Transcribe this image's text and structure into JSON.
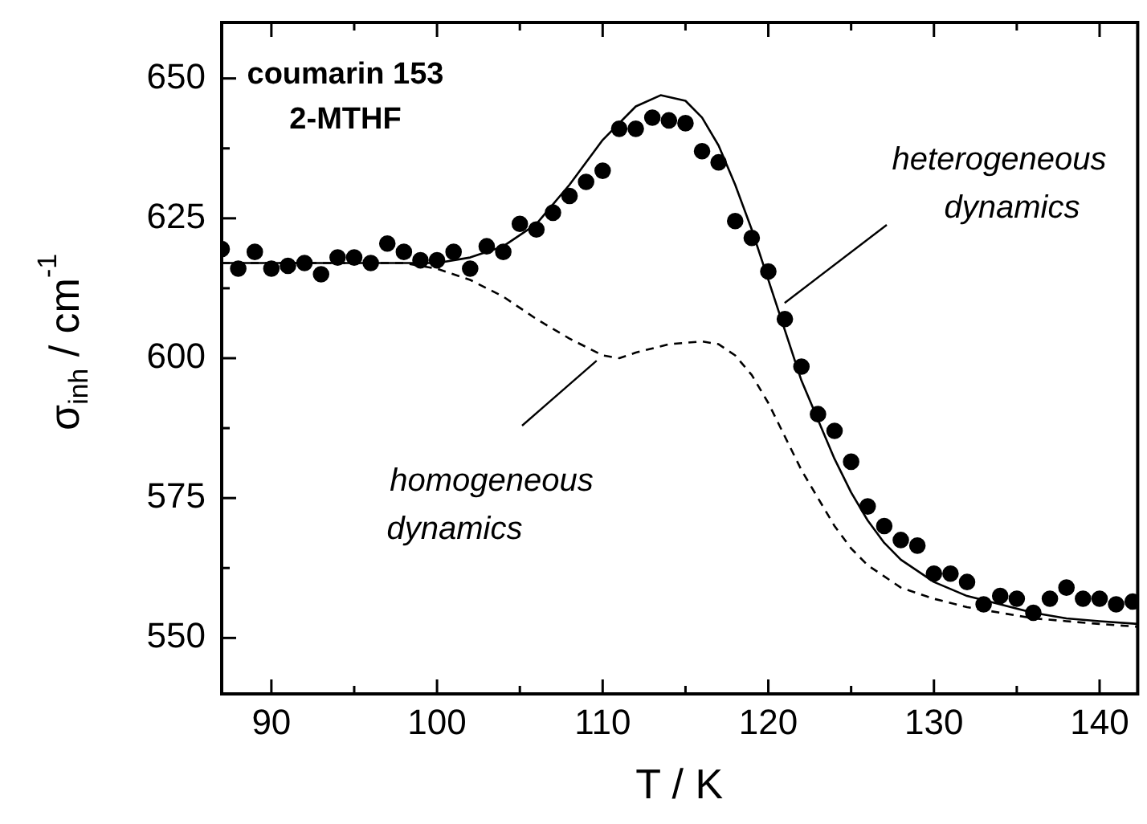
{
  "chart_data": {
    "type": "scatter",
    "xlabel": "T / K",
    "ylabel": "σ$_{inh}$ / cm$^{-1}$",
    "xlim": [
      87,
      142.3
    ],
    "ylim": [
      540,
      660
    ],
    "xticks": [
      90,
      {
        "value": 95,
        "label": null
      },
      100,
      {
        "value": 105,
        "label": null
      },
      110,
      {
        "value": 115,
        "label": null
      },
      120,
      {
        "value": 125,
        "label": null
      },
      130,
      {
        "value": 135,
        "label": null
      },
      140
    ],
    "yticks": [
      550,
      {
        "value": 562.5,
        "label": null
      },
      575,
      {
        "value": 587.5,
        "label": null
      },
      600,
      {
        "value": 612.5,
        "label": null
      },
      625,
      {
        "value": 637.5,
        "label": null
      },
      650
    ],
    "grid": false,
    "legend": false,
    "annotations": [
      "coumarin 153\n2-MTHF",
      {
        "text": "heterogeneous\ndynamics",
        "x": 120.6,
        "y": 609
      },
      {
        "text": "homogeneous\ndynamics",
        "x": 110,
        "y": 600.5
      }
    ],
    "series": [
      {
        "color": "#000000",
        "marker": "circle",
        "x": [
          87,
          88,
          89,
          90,
          91,
          92,
          93,
          94,
          95,
          96,
          97,
          98,
          99,
          100,
          101,
          102,
          103,
          104,
          105,
          106,
          107,
          108,
          109,
          110,
          111,
          112,
          113,
          114,
          115,
          116,
          117,
          118,
          119,
          120,
          121,
          122,
          123,
          124,
          125,
          126,
          127,
          128,
          129,
          130,
          131,
          132,
          133,
          134,
          135,
          136,
          137,
          138,
          139,
          140,
          141,
          142
        ],
        "values": [
          619.5,
          616,
          619,
          616,
          616.5,
          617,
          615,
          618,
          618,
          617,
          620.5,
          619,
          617.5,
          617.5,
          619,
          616,
          620,
          619,
          624,
          623,
          626,
          629,
          631.5,
          633.5,
          641,
          641,
          643,
          642.5,
          642,
          637,
          635,
          624.5,
          621.5,
          615.5,
          607,
          598.5,
          590,
          587,
          581.5,
          573.5,
          570,
          567.5,
          566.5,
          561.5,
          561.5,
          560,
          556,
          557.5,
          557,
          554.5,
          557,
          559,
          557,
          557,
          556,
          556.5
        ]
      },
      {
        "type": "line",
        "color": "#000000",
        "marker": "none",
        "line_style": "solid",
        "x": [
          87,
          100,
          102,
          104,
          106,
          108,
          110,
          112,
          113.5,
          115,
          116,
          117,
          118,
          119,
          120,
          121,
          122,
          123,
          124,
          125,
          126,
          127,
          128,
          130,
          132,
          134,
          136,
          138,
          140,
          142.3
        ],
        "values": [
          617,
          617,
          618,
          620,
          624,
          631,
          639,
          645,
          647,
          646,
          643,
          638,
          631,
          623,
          614,
          605,
          596,
          589,
          582,
          576,
          571,
          567,
          564,
          560,
          557.5,
          556,
          554.5,
          553.5,
          553,
          552.5
        ]
      },
      {
        "type": "line",
        "color": "#000000",
        "marker": "none",
        "line_style": "dashed",
        "x": [
          87,
          98,
          100,
          102,
          104,
          106,
          108,
          110,
          111,
          112,
          114,
          116,
          117,
          118,
          119,
          120,
          121,
          122,
          123,
          124,
          125,
          126,
          128,
          130,
          132,
          134,
          136,
          138,
          140,
          142.3
        ],
        "values": [
          617,
          617,
          616,
          614,
          611,
          607,
          603.5,
          600.5,
          600,
          601,
          602.5,
          603,
          602.5,
          600.5,
          597,
          592,
          586,
          580,
          575,
          570,
          566,
          563,
          559,
          557,
          555.5,
          554.5,
          553.5,
          553,
          552.5,
          552
        ]
      }
    ]
  }
}
